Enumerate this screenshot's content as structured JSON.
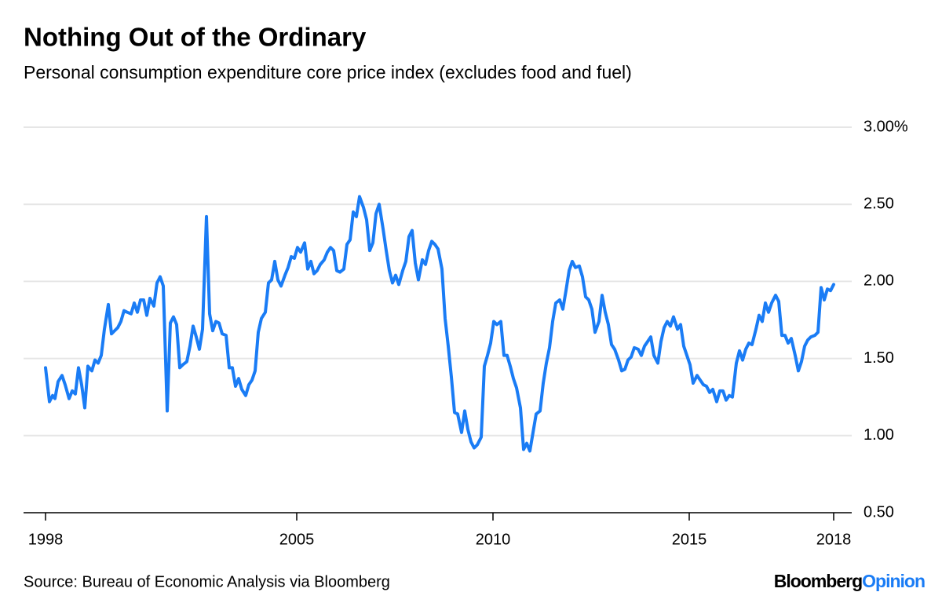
{
  "chart_data": {
    "type": "line",
    "title": "Nothing Out of the Ordinary",
    "subtitle": "Personal consumption expenditure core price index (excludes food and fuel)",
    "color": "#1a7cf5",
    "grid": true,
    "xlim": [
      1998.04,
      2019.14
    ],
    "ylim": [
      0.5,
      3.0
    ],
    "xticks": [
      {
        "value": 1998.6,
        "label": "1998"
      },
      2005,
      2010,
      2015,
      {
        "value": 2018.68,
        "label": "2018"
      }
    ],
    "yticks": [
      {
        "value": 0.5,
        "label": "0.50"
      },
      {
        "value": 1,
        "label": "1.00"
      },
      {
        "value": 1.5,
        "label": "1.50"
      },
      {
        "value": 2,
        "label": "2.00"
      },
      {
        "value": 2.5,
        "label": "2.50"
      },
      {
        "value": 3,
        "label": "3.00%"
      }
    ],
    "x": [
      1998.6,
      1998.7,
      1998.78,
      1998.84,
      1998.92,
      1999.02,
      1999.1,
      1999.2,
      1999.28,
      1999.36,
      1999.44,
      1999.52,
      1999.6,
      1999.68,
      1999.78,
      1999.86,
      1999.94,
      2000.02,
      2000.1,
      2000.2,
      2000.28,
      2000.36,
      2000.44,
      2000.52,
      2000.6,
      2000.68,
      2000.78,
      2000.86,
      2000.94,
      2001.02,
      2001.1,
      2001.18,
      2001.26,
      2001.36,
      2001.44,
      2001.52,
      2001.6,
      2001.7,
      2001.78,
      2001.86,
      2001.94,
      2002.02,
      2002.1,
      2002.2,
      2002.28,
      2002.36,
      2002.44,
      2002.52,
      2002.6,
      2002.7,
      2002.78,
      2002.86,
      2002.94,
      2003.02,
      2003.1,
      2003.2,
      2003.28,
      2003.36,
      2003.44,
      2003.52,
      2003.6,
      2003.7,
      2003.78,
      2003.86,
      2003.94,
      2004.02,
      2004.1,
      2004.2,
      2004.28,
      2004.36,
      2004.44,
      2004.52,
      2004.6,
      2004.7,
      2004.78,
      2004.86,
      2004.94,
      2005.02,
      2005.1,
      2005.2,
      2005.28,
      2005.36,
      2005.44,
      2005.52,
      2005.6,
      2005.7,
      2005.78,
      2005.86,
      2005.94,
      2006.02,
      2006.1,
      2006.2,
      2006.28,
      2006.36,
      2006.44,
      2006.52,
      2006.6,
      2006.7,
      2006.78,
      2006.86,
      2006.94,
      2007.02,
      2007.1,
      2007.2,
      2007.28,
      2007.36,
      2007.44,
      2007.52,
      2007.6,
      2007.7,
      2007.78,
      2007.86,
      2007.94,
      2008.02,
      2008.1,
      2008.2,
      2008.28,
      2008.36,
      2008.44,
      2008.52,
      2008.6,
      2008.7,
      2008.78,
      2008.86,
      2008.94,
      2009.02,
      2009.1,
      2009.2,
      2009.28,
      2009.36,
      2009.44,
      2009.52,
      2009.6,
      2009.7,
      2009.78,
      2009.86,
      2009.94,
      2010.02,
      2010.1,
      2010.2,
      2010.28,
      2010.36,
      2010.44,
      2010.52,
      2010.6,
      2010.7,
      2010.78,
      2010.86,
      2010.94,
      2011.02,
      2011.1,
      2011.2,
      2011.28,
      2011.36,
      2011.44,
      2011.52,
      2011.6,
      2011.7,
      2011.78,
      2011.86,
      2011.94,
      2012.02,
      2012.1,
      2012.2,
      2012.28,
      2012.36,
      2012.44,
      2012.52,
      2012.6,
      2012.7,
      2012.78,
      2012.86,
      2012.94,
      2013.02,
      2013.1,
      2013.2,
      2013.28,
      2013.36,
      2013.44,
      2013.52,
      2013.6,
      2013.7,
      2013.78,
      2013.86,
      2013.94,
      2014.02,
      2014.1,
      2014.2,
      2014.28,
      2014.36,
      2014.44,
      2014.52,
      2014.6,
      2014.7,
      2014.78,
      2014.86,
      2014.94,
      2015.02,
      2015.1,
      2015.2,
      2015.28,
      2015.36,
      2015.44,
      2015.52,
      2015.6,
      2015.7,
      2015.78,
      2015.86,
      2015.94,
      2016.02,
      2016.1,
      2016.2,
      2016.28,
      2016.36,
      2016.44,
      2016.52,
      2016.6,
      2016.7,
      2016.78,
      2016.86,
      2016.94,
      2017.02,
      2017.1,
      2017.2,
      2017.28,
      2017.36,
      2017.44,
      2017.52,
      2017.6,
      2017.7,
      2017.78,
      2017.86,
      2017.94,
      2018.02,
      2018.1,
      2018.2,
      2018.28,
      2018.36,
      2018.44,
      2018.52,
      2018.6,
      2018.68
    ],
    "values": [
      1.44,
      1.22,
      1.26,
      1.24,
      1.35,
      1.39,
      1.33,
      1.24,
      1.29,
      1.27,
      1.44,
      1.33,
      1.18,
      1.45,
      1.42,
      1.49,
      1.47,
      1.52,
      1.69,
      1.85,
      1.66,
      1.68,
      1.7,
      1.74,
      1.81,
      1.8,
      1.79,
      1.86,
      1.8,
      1.88,
      1.88,
      1.78,
      1.89,
      1.84,
      1.99,
      2.03,
      1.97,
      1.16,
      1.73,
      1.77,
      1.72,
      1.44,
      1.46,
      1.48,
      1.58,
      1.71,
      1.64,
      1.56,
      1.69,
      2.42,
      1.79,
      1.68,
      1.74,
      1.73,
      1.66,
      1.65,
      1.44,
      1.44,
      1.32,
      1.37,
      1.3,
      1.26,
      1.33,
      1.36,
      1.42,
      1.67,
      1.76,
      1.8,
      1.99,
      2.01,
      2.13,
      2.01,
      1.97,
      2.04,
      2.09,
      2.16,
      2.15,
      2.22,
      2.19,
      2.25,
      2.08,
      2.13,
      2.05,
      2.07,
      2.11,
      2.14,
      2.19,
      2.22,
      2.2,
      2.07,
      2.06,
      2.08,
      2.24,
      2.27,
      2.45,
      2.42,
      2.55,
      2.48,
      2.4,
      2.2,
      2.25,
      2.44,
      2.5,
      2.34,
      2.2,
      2.07,
      1.99,
      2.04,
      1.98,
      2.07,
      2.13,
      2.29,
      2.33,
      2.12,
      2.01,
      2.14,
      2.11,
      2.2,
      2.26,
      2.24,
      2.21,
      2.08,
      1.76,
      1.58,
      1.38,
      1.15,
      1.14,
      1.02,
      1.16,
      1.04,
      0.96,
      0.92,
      0.94,
      0.99,
      1.45,
      1.52,
      1.6,
      1.74,
      1.72,
      1.74,
      1.52,
      1.52,
      1.45,
      1.37,
      1.31,
      1.18,
      0.91,
      0.95,
      0.9,
      1.02,
      1.14,
      1.16,
      1.34,
      1.47,
      1.57,
      1.74,
      1.86,
      1.88,
      1.82,
      1.94,
      2.07,
      2.13,
      2.09,
      2.1,
      2.03,
      1.9,
      1.88,
      1.82,
      1.67,
      1.74,
      1.91,
      1.8,
      1.72,
      1.59,
      1.56,
      1.49,
      1.42,
      1.43,
      1.49,
      1.51,
      1.57,
      1.56,
      1.52,
      1.58,
      1.61,
      1.64,
      1.52,
      1.47,
      1.61,
      1.7,
      1.74,
      1.71,
      1.77,
      1.69,
      1.72,
      1.58,
      1.52,
      1.46,
      1.34,
      1.39,
      1.36,
      1.33,
      1.32,
      1.28,
      1.3,
      1.22,
      1.29,
      1.29,
      1.23,
      1.26,
      1.25,
      1.47,
      1.55,
      1.49,
      1.56,
      1.6,
      1.59,
      1.69,
      1.78,
      1.74,
      1.86,
      1.8,
      1.86,
      1.91,
      1.87,
      1.65,
      1.65,
      1.6,
      1.63,
      1.52,
      1.42,
      1.48,
      1.58,
      1.62,
      1.64,
      1.65,
      1.67,
      1.96,
      1.88,
      1.95,
      1.94,
      1.98
    ]
  },
  "footer": {
    "source": "Source: Bureau of Economic Analysis via Bloomberg",
    "logo": [
      "Bloomberg",
      "Opinion"
    ]
  }
}
